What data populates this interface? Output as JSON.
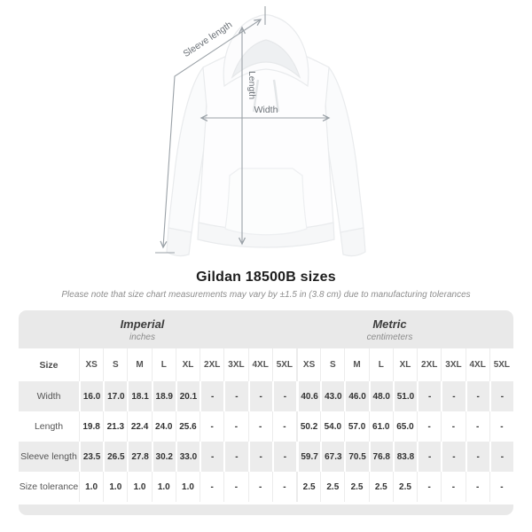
{
  "diagram": {
    "sleeve_label": "Sleeve length",
    "length_label": "Length",
    "width_label": "Width"
  },
  "title": "Gildan 18500B sizes",
  "subtitle": "Please note that size chart measurements may vary by ±1.5 in (3.8 cm) due to manufacturing tolerances",
  "table": {
    "sections": [
      {
        "name": "Imperial",
        "unit": "inches"
      },
      {
        "name": "Metric",
        "unit": "centimeters"
      }
    ],
    "size_label": "Size",
    "columns": [
      "XS",
      "S",
      "M",
      "L",
      "XL",
      "2XL",
      "3XL",
      "4XL",
      "5XL"
    ],
    "rows": [
      {
        "label": "Width",
        "imperial": [
          "16.0",
          "17.0",
          "18.1",
          "18.9",
          "20.1",
          "-",
          "-",
          "-",
          "-"
        ],
        "metric": [
          "40.6",
          "43.0",
          "46.0",
          "48.0",
          "51.0",
          "-",
          "-",
          "-",
          "-"
        ]
      },
      {
        "label": "Length",
        "imperial": [
          "19.8",
          "21.3",
          "22.4",
          "24.0",
          "25.6",
          "-",
          "-",
          "-",
          "-"
        ],
        "metric": [
          "50.2",
          "54.0",
          "57.0",
          "61.0",
          "65.0",
          "-",
          "-",
          "-",
          "-"
        ]
      },
      {
        "label": "Sleeve length",
        "imperial": [
          "23.5",
          "26.5",
          "27.8",
          "30.2",
          "33.0",
          "-",
          "-",
          "-",
          "-"
        ],
        "metric": [
          "59.7",
          "67.3",
          "70.5",
          "76.8",
          "83.8",
          "-",
          "-",
          "-",
          "-"
        ]
      },
      {
        "label": "Size tolerance",
        "imperial": [
          "1.0",
          "1.0",
          "1.0",
          "1.0",
          "1.0",
          "-",
          "-",
          "-",
          "-"
        ],
        "metric": [
          "2.5",
          "2.5",
          "2.5",
          "2.5",
          "2.5",
          "-",
          "-",
          "-",
          "-"
        ]
      }
    ]
  },
  "colors": {
    "header_bg": "#e9e9e9",
    "stripe_bg": "#ececec",
    "arrow": "#9aa1a7",
    "title_text": "#1e1e1e",
    "muted_text": "#8e8e8e"
  },
  "chart_data": {
    "type": "table",
    "title": "Gildan 18500B sizes",
    "note": "Please note that size chart measurements may vary by ±1.5 in (3.8 cm) due to manufacturing tolerances",
    "columns": [
      "XS",
      "S",
      "M",
      "L",
      "XL",
      "2XL",
      "3XL",
      "4XL",
      "5XL"
    ],
    "sections": [
      {
        "name": "Imperial",
        "unit": "inches",
        "rows": [
          {
            "label": "Width",
            "values": [
              16.0,
              17.0,
              18.1,
              18.9,
              20.1,
              null,
              null,
              null,
              null
            ]
          },
          {
            "label": "Length",
            "values": [
              19.8,
              21.3,
              22.4,
              24.0,
              25.6,
              null,
              null,
              null,
              null
            ]
          },
          {
            "label": "Sleeve length",
            "values": [
              23.5,
              26.5,
              27.8,
              30.2,
              33.0,
              null,
              null,
              null,
              null
            ]
          },
          {
            "label": "Size tolerance",
            "values": [
              1.0,
              1.0,
              1.0,
              1.0,
              1.0,
              null,
              null,
              null,
              null
            ]
          }
        ]
      },
      {
        "name": "Metric",
        "unit": "centimeters",
        "rows": [
          {
            "label": "Width",
            "values": [
              40.6,
              43.0,
              46.0,
              48.0,
              51.0,
              null,
              null,
              null,
              null
            ]
          },
          {
            "label": "Length",
            "values": [
              50.2,
              54.0,
              57.0,
              61.0,
              65.0,
              null,
              null,
              null,
              null
            ]
          },
          {
            "label": "Sleeve length",
            "values": [
              59.7,
              67.3,
              70.5,
              76.8,
              83.8,
              null,
              null,
              null,
              null
            ]
          },
          {
            "label": "Size tolerance",
            "values": [
              2.5,
              2.5,
              2.5,
              2.5,
              2.5,
              null,
              null,
              null,
              null
            ]
          }
        ]
      }
    ]
  }
}
